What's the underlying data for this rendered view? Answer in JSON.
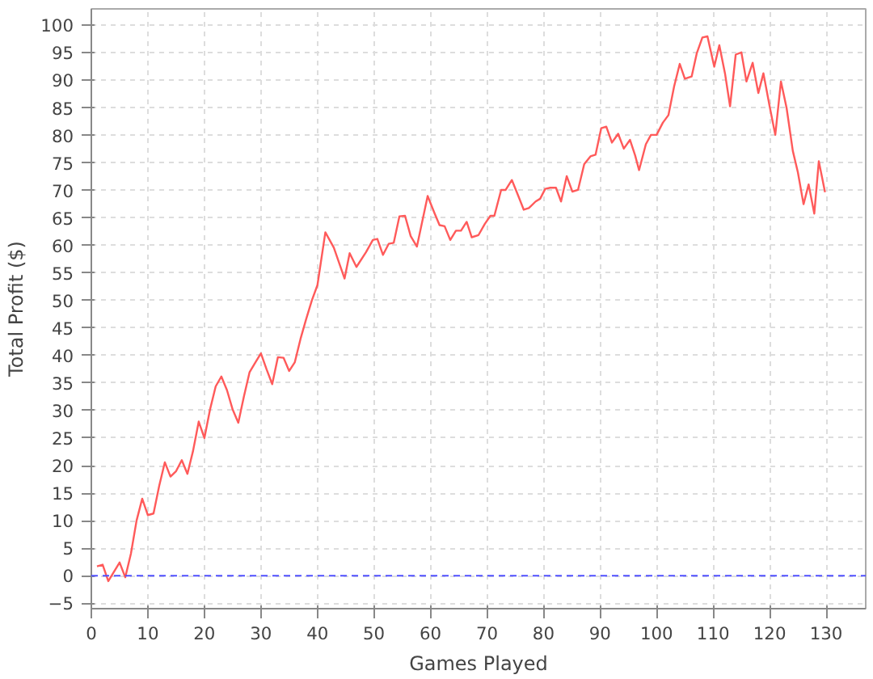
{
  "chart_data": {
    "type": "line",
    "xlabel": "Games Played",
    "ylabel": "Total Profit ($)",
    "x": [
      1,
      2,
      3,
      5,
      6,
      7,
      8,
      9,
      10,
      11,
      12,
      13,
      14,
      15,
      16,
      17,
      18,
      19,
      20,
      21,
      22,
      23,
      24,
      25,
      26,
      27,
      28,
      29,
      30,
      31,
      32,
      33,
      34,
      35,
      36,
      37,
      38,
      39,
      40,
      41.4,
      42.9,
      44.8,
      45.7,
      46.9,
      48.6,
      49.8,
      50.6,
      51.6,
      52.6,
      53.5,
      54.5,
      55.5,
      56.5,
      57.6,
      59.5,
      60.7,
      61.6,
      62.5,
      63.5,
      64.5,
      65.4,
      66.4,
      67.3,
      68.5,
      69.6,
      70.6,
      71.3,
      72.5,
      73.3,
      74.4,
      75.5,
      76.5,
      77.4,
      78.6,
      79.4,
      80.3,
      81.2,
      82.2,
      83.1,
      84.1,
      85.1,
      86.1,
      87.2,
      88.3,
      89.2,
      90.2,
      91.1,
      92.1,
      93.2,
      94.2,
      95.3,
      96.2,
      96.9,
      98.1,
      99,
      100,
      101.1,
      102.1,
      103.1,
      104.1,
      105,
      106.2,
      107.1,
      108.1,
      109,
      110.2,
      111.1,
      112.1,
      113,
      114,
      115,
      115.9,
      117,
      118,
      118.9,
      120,
      121,
      122,
      123,
      124.1,
      125,
      126,
      126.9,
      127.9,
      128.7,
      129.8
    ],
    "series": [
      {
        "color": "#ff5a5a",
        "values": [
          1.7,
          2,
          -1,
          2.4,
          -0.3,
          4,
          10,
          14,
          11,
          11.3,
          16.3,
          20.6,
          18,
          19,
          21,
          18.5,
          22.7,
          28,
          25,
          30.2,
          34.4,
          36.2,
          33.7,
          30.2,
          27.8,
          32.6,
          37,
          38.7,
          40.4,
          37.5,
          34.8,
          39.7,
          39.6,
          37.2,
          38.8,
          43,
          46.6,
          50,
          52.8,
          62.4,
          59.6,
          54,
          58.6,
          56.1,
          58.8,
          61,
          61.2,
          58.3,
          60.3,
          60.5,
          65.3,
          65.4,
          61.7,
          59.8,
          69,
          65.9,
          63.7,
          63.5,
          61,
          62.7,
          62.7,
          64.3,
          61.5,
          61.9,
          63.9,
          65.4,
          65.4,
          70.1,
          70.1,
          71.9,
          69.1,
          66.5,
          66.8,
          68,
          68.5,
          70.3,
          70.5,
          70.5,
          68,
          72.6,
          69.8,
          70.1,
          74.8,
          76.2,
          76.5,
          81.3,
          81.6,
          78.7,
          80.3,
          77.6,
          79.2,
          76.4,
          73.7,
          78.4,
          80.1,
          80.1,
          82.3,
          83.7,
          88.9,
          93,
          90.3,
          90.7,
          94.9,
          97.8,
          98,
          92.5,
          96.4,
          91.3,
          85.3,
          94.7,
          95.1,
          89.8,
          93.2,
          87.7,
          91.3,
          85.3,
          80.1,
          89.8,
          85,
          77.2,
          73.3,
          67.5,
          71.1,
          65.8,
          75.3,
          69.7
        ]
      }
    ],
    "xlim": [
      0,
      137
    ],
    "ylim": [
      -6,
      103
    ],
    "xticks": [
      0,
      10,
      20,
      30,
      40,
      50,
      60,
      70,
      80,
      90,
      100,
      110,
      120,
      130
    ],
    "yticks": [
      -5,
      0,
      5,
      10,
      15,
      20,
      25,
      30,
      35,
      40,
      45,
      50,
      55,
      60,
      65,
      70,
      75,
      80,
      85,
      90,
      95,
      100
    ],
    "grid": true,
    "marker": "none",
    "line_style": "solid",
    "ref_lines": [
      {
        "axis": "y",
        "value": 0,
        "color": "#5050ff",
        "line_style": "dashed"
      }
    ]
  }
}
